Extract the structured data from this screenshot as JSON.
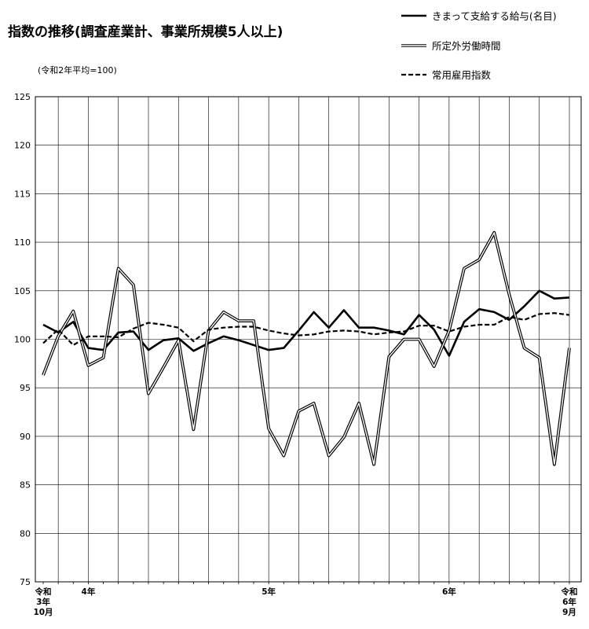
{
  "title": "指数の推移(調査産業計、事業所規模5人以上)",
  "subtitle": "(令和2年平均=100)",
  "legend": [
    {
      "label": "きまって支給する給与(名目)",
      "style": "solid"
    },
    {
      "label": "所定外労働時間",
      "style": "double"
    },
    {
      "label": "常用雇用指数",
      "style": "dashed"
    }
  ],
  "chart_data": {
    "type": "line",
    "title": "指数の推移(調査産業計、事業所規模5人以上)",
    "subtitle": "(令和2年平均=100)",
    "ylim": [
      75,
      125
    ],
    "yticks": [
      75,
      80,
      85,
      90,
      95,
      100,
      105,
      110,
      115,
      120,
      125
    ],
    "grid": true,
    "legend_position": "top-right",
    "x_labels": [
      {
        "index": 0,
        "lines": [
          "令和",
          "3年",
          "10月"
        ]
      },
      {
        "index": 3,
        "lines": [
          "4年"
        ]
      },
      {
        "index": 15,
        "lines": [
          "5年"
        ]
      },
      {
        "index": 27,
        "lines": [
          "6年"
        ]
      },
      {
        "index": 35,
        "lines": [
          "令和",
          "6年",
          "9月"
        ]
      }
    ],
    "series": [
      {
        "name": "きまって支給する給与(名目)",
        "style": "solid",
        "values": [
          101.5,
          100.7,
          101.8,
          99.1,
          98.9,
          100.7,
          100.8,
          98.9,
          99.9,
          100.1,
          98.8,
          99.6,
          100.3,
          99.9,
          99.4,
          98.9,
          99.1,
          100.9,
          102.8,
          101.2,
          103.0,
          101.2,
          101.2,
          100.9,
          100.5,
          102.5,
          101.0,
          98.3,
          101.8,
          103.1,
          102.8,
          102.0,
          103.4,
          105.0,
          104.2,
          104.3
        ]
      },
      {
        "name": "所定外労働時間",
        "style": "double",
        "values": [
          96.3,
          100.3,
          102.9,
          97.3,
          98.1,
          107.3,
          105.6,
          94.4,
          97.1,
          99.9,
          90.7,
          100.9,
          102.8,
          101.9,
          101.9,
          90.8,
          88.0,
          92.6,
          93.4,
          88.0,
          89.9,
          93.4,
          87.1,
          98.2,
          100.0,
          100.0,
          97.2,
          100.9,
          107.3,
          108.2,
          111.0,
          104.6,
          99.1,
          98.1,
          87.1,
          99.1
        ]
      },
      {
        "name": "常用雇用指数",
        "style": "dashed",
        "values": [
          99.6,
          101.0,
          99.4,
          100.3,
          100.3,
          100.2,
          101.1,
          101.7,
          101.5,
          101.2,
          99.8,
          101.0,
          101.2,
          101.3,
          101.3,
          100.9,
          100.6,
          100.4,
          100.5,
          100.8,
          100.9,
          100.8,
          100.5,
          100.7,
          100.8,
          101.4,
          101.4,
          100.8,
          101.3,
          101.5,
          101.5,
          102.3,
          102.0,
          102.6,
          102.7,
          102.5
        ]
      }
    ]
  }
}
